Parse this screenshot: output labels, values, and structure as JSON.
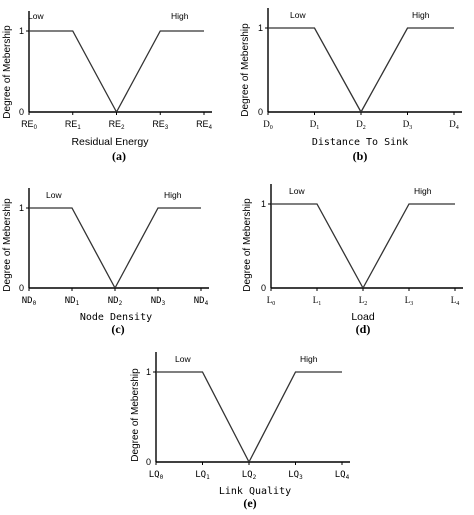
{
  "chart_data": [
    {
      "type": "line",
      "caption": "(a)",
      "xlabel": "Residual Energy",
      "ylabel": "Degree of Mebership",
      "tick_base": "RE",
      "tick_subs": [
        "0",
        "1",
        "2",
        "3",
        "4"
      ],
      "y_ticks": [
        "0",
        "1"
      ],
      "ylim": [
        0,
        1
      ],
      "series": [
        {
          "name": "Low",
          "x": [
            0,
            1,
            2
          ],
          "y": [
            1,
            1,
            0
          ]
        },
        {
          "name": "High",
          "x": [
            2,
            3,
            4
          ],
          "y": [
            0,
            1,
            1
          ]
        }
      ]
    },
    {
      "type": "line",
      "caption": "(b)",
      "xlabel": "Distance To Sink",
      "ylabel": "Degree of Mebership",
      "tick_base": "D",
      "tick_subs": [
        "0",
        "1",
        "2",
        "3",
        "4"
      ],
      "y_ticks": [
        "0",
        "1"
      ],
      "ylim": [
        0,
        1
      ],
      "series": [
        {
          "name": "Low",
          "x": [
            0,
            1,
            2
          ],
          "y": [
            1,
            1,
            0
          ]
        },
        {
          "name": "High",
          "x": [
            2,
            3,
            4
          ],
          "y": [
            0,
            1,
            1
          ]
        }
      ]
    },
    {
      "type": "line",
      "caption": "(c)",
      "xlabel": "Node Density",
      "ylabel": "Degree of Mebership",
      "tick_base": "ND",
      "tick_subs": [
        "0",
        "1",
        "2",
        "3",
        "4"
      ],
      "y_ticks": [
        "0",
        "1"
      ],
      "ylim": [
        0,
        1
      ],
      "series": [
        {
          "name": "Low",
          "x": [
            0,
            1,
            2
          ],
          "y": [
            1,
            1,
            0
          ]
        },
        {
          "name": "High",
          "x": [
            2,
            3,
            4
          ],
          "y": [
            0,
            1,
            1
          ]
        }
      ]
    },
    {
      "type": "line",
      "caption": "(d)",
      "xlabel": "Load",
      "ylabel": "Degree of Mebership",
      "tick_base": "L",
      "tick_subs": [
        "0",
        "1",
        "2",
        "3",
        "4"
      ],
      "y_ticks": [
        "0",
        "1"
      ],
      "ylim": [
        0,
        1
      ],
      "series": [
        {
          "name": "Low",
          "x": [
            0,
            1,
            2
          ],
          "y": [
            1,
            1,
            0
          ]
        },
        {
          "name": "High",
          "x": [
            2,
            3,
            4
          ],
          "y": [
            0,
            1,
            1
          ]
        }
      ]
    },
    {
      "type": "line",
      "caption": "(e)",
      "xlabel": "Link Quality",
      "ylabel": "Degree of Mebership",
      "tick_base": "LQ",
      "tick_subs": [
        "0",
        "1",
        "2",
        "3",
        "4"
      ],
      "y_ticks": [
        "0",
        "1"
      ],
      "ylim": [
        0,
        1
      ],
      "series": [
        {
          "name": "Low",
          "x": [
            0,
            1,
            2
          ],
          "y": [
            1,
            1,
            0
          ]
        },
        {
          "name": "High",
          "x": [
            2,
            3,
            4
          ],
          "y": [
            0,
            1,
            1
          ]
        }
      ]
    }
  ]
}
